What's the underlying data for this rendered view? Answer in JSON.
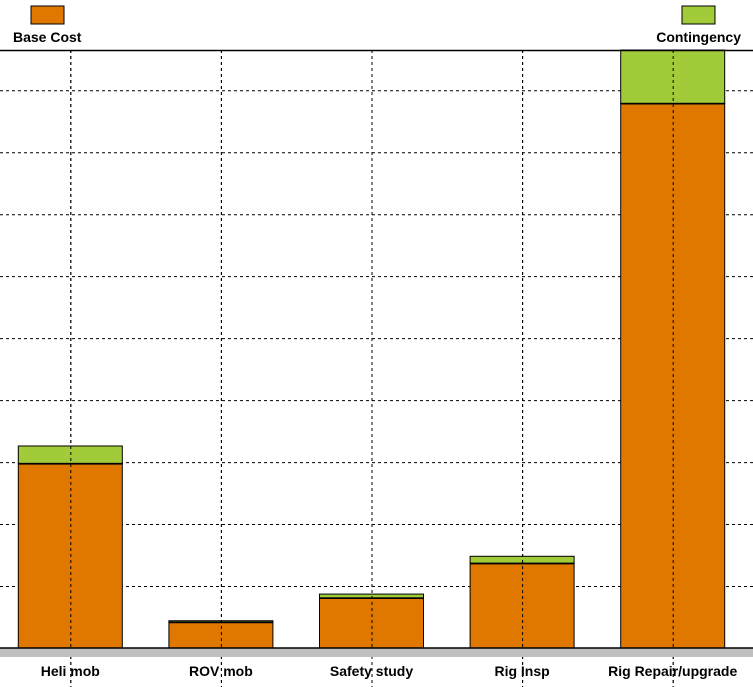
{
  "chart_data": {
    "type": "bar",
    "stacked": true,
    "title": "",
    "xlabel": "",
    "ylabel": "",
    "categories": [
      "Heli mob",
      "ROV mob",
      "Safety study",
      "Rig Insp",
      "Rig Repair/upgrade"
    ],
    "series": [
      {
        "name": "Base Cost",
        "color": "#e07800",
        "values": [
          2.98,
          0.42,
          0.81,
          1.37,
          8.79
        ]
      },
      {
        "name": "Contingency",
        "color": "#a2cb3a",
        "values": [
          0.28,
          0.02,
          0.06,
          0.11,
          0.86
        ]
      }
    ],
    "ylim": [
      0,
      9.65
    ],
    "y_grid_step": 1,
    "grid": true,
    "y_tick_labels_shown": false,
    "legend": [
      "top-left: Base Cost",
      "top-right: Contingency"
    ]
  }
}
